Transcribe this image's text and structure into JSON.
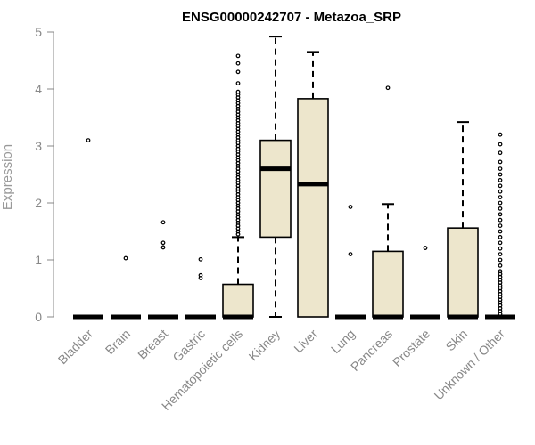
{
  "chart_data": {
    "type": "box",
    "title": "ENSG00000242707 - Metazoa_SRP",
    "xlabel": "",
    "ylabel": "Expression",
    "ylim": [
      0,
      5
    ],
    "yticks": [
      "0",
      "1",
      "2",
      "3",
      "4",
      "5"
    ],
    "box_fill": "#ede6cc",
    "categories": [
      "Bladder",
      "Brain",
      "Breast",
      "Gastric",
      "Hematopoietic cells",
      "Kidney",
      "Liver",
      "Lung",
      "Pancreas",
      "Prostate",
      "Skin",
      "Unknown / Other"
    ],
    "boxes": [
      {
        "name": "Bladder",
        "q1": 0,
        "median": 0,
        "q3": 0,
        "whisker_low": 0,
        "whisker_high": 0,
        "outliers": [
          3.1
        ]
      },
      {
        "name": "Brain",
        "q1": 0,
        "median": 0,
        "q3": 0,
        "whisker_low": 0,
        "whisker_high": 0,
        "outliers": [
          1.03
        ]
      },
      {
        "name": "Breast",
        "q1": 0,
        "median": 0,
        "q3": 0,
        "whisker_low": 0,
        "whisker_high": 0,
        "outliers": [
          1.22,
          1.3,
          1.66
        ]
      },
      {
        "name": "Gastric",
        "q1": 0,
        "median": 0,
        "q3": 0,
        "whisker_low": 0,
        "whisker_high": 0,
        "outliers": [
          0.68,
          0.73,
          1.01
        ]
      },
      {
        "name": "Hematopoietic cells",
        "q1": 0,
        "median": 0,
        "q3": 0.57,
        "whisker_low": 0,
        "whisker_high": 1.4,
        "outliers": [
          1.45,
          1.5,
          1.55,
          1.6,
          1.65,
          1.7,
          1.75,
          1.8,
          1.85,
          1.9,
          1.95,
          2.0,
          2.05,
          2.1,
          2.15,
          2.2,
          2.25,
          2.3,
          2.35,
          2.4,
          2.45,
          2.5,
          2.55,
          2.6,
          2.65,
          2.7,
          2.75,
          2.8,
          2.85,
          2.9,
          2.95,
          3.0,
          3.05,
          3.1,
          3.15,
          3.2,
          3.25,
          3.3,
          3.35,
          3.4,
          3.45,
          3.5,
          3.55,
          3.6,
          3.65,
          3.7,
          3.75,
          3.8,
          3.85,
          3.9,
          3.95,
          4.1,
          4.3,
          4.45,
          4.58
        ]
      },
      {
        "name": "Kidney",
        "q1": 1.4,
        "median": 2.6,
        "q3": 3.1,
        "whisker_low": 0,
        "whisker_high": 4.92,
        "outliers": []
      },
      {
        "name": "Liver",
        "q1": 0,
        "median": 2.33,
        "q3": 3.83,
        "whisker_low": 0,
        "whisker_high": 4.65,
        "outliers": []
      },
      {
        "name": "Lung",
        "q1": 0,
        "median": 0,
        "q3": 0,
        "whisker_low": 0,
        "whisker_high": 0,
        "outliers": [
          1.1,
          1.93
        ]
      },
      {
        "name": "Pancreas",
        "q1": 0,
        "median": 0,
        "q3": 1.15,
        "whisker_low": 0,
        "whisker_high": 1.98,
        "outliers": [
          4.02
        ]
      },
      {
        "name": "Prostate",
        "q1": 0,
        "median": 0,
        "q3": 0,
        "whisker_low": 0,
        "whisker_high": 0,
        "outliers": [
          1.21
        ]
      },
      {
        "name": "Skin",
        "q1": 0,
        "median": 0,
        "q3": 1.56,
        "whisker_low": 0,
        "whisker_high": 3.42,
        "outliers": []
      },
      {
        "name": "Unknown / Other",
        "q1": 0,
        "median": 0,
        "q3": 0,
        "whisker_low": 0,
        "whisker_high": 0,
        "outliers": [
          0.05,
          0.1,
          0.15,
          0.2,
          0.25,
          0.3,
          0.35,
          0.4,
          0.45,
          0.5,
          0.55,
          0.6,
          0.65,
          0.7,
          0.75,
          0.8,
          0.9,
          1.0,
          1.1,
          1.2,
          1.3,
          1.4,
          1.5,
          1.6,
          1.7,
          1.8,
          1.9,
          2.0,
          2.1,
          2.2,
          2.3,
          2.4,
          2.5,
          2.6,
          2.72,
          2.88,
          3.03,
          3.2
        ]
      }
    ]
  }
}
